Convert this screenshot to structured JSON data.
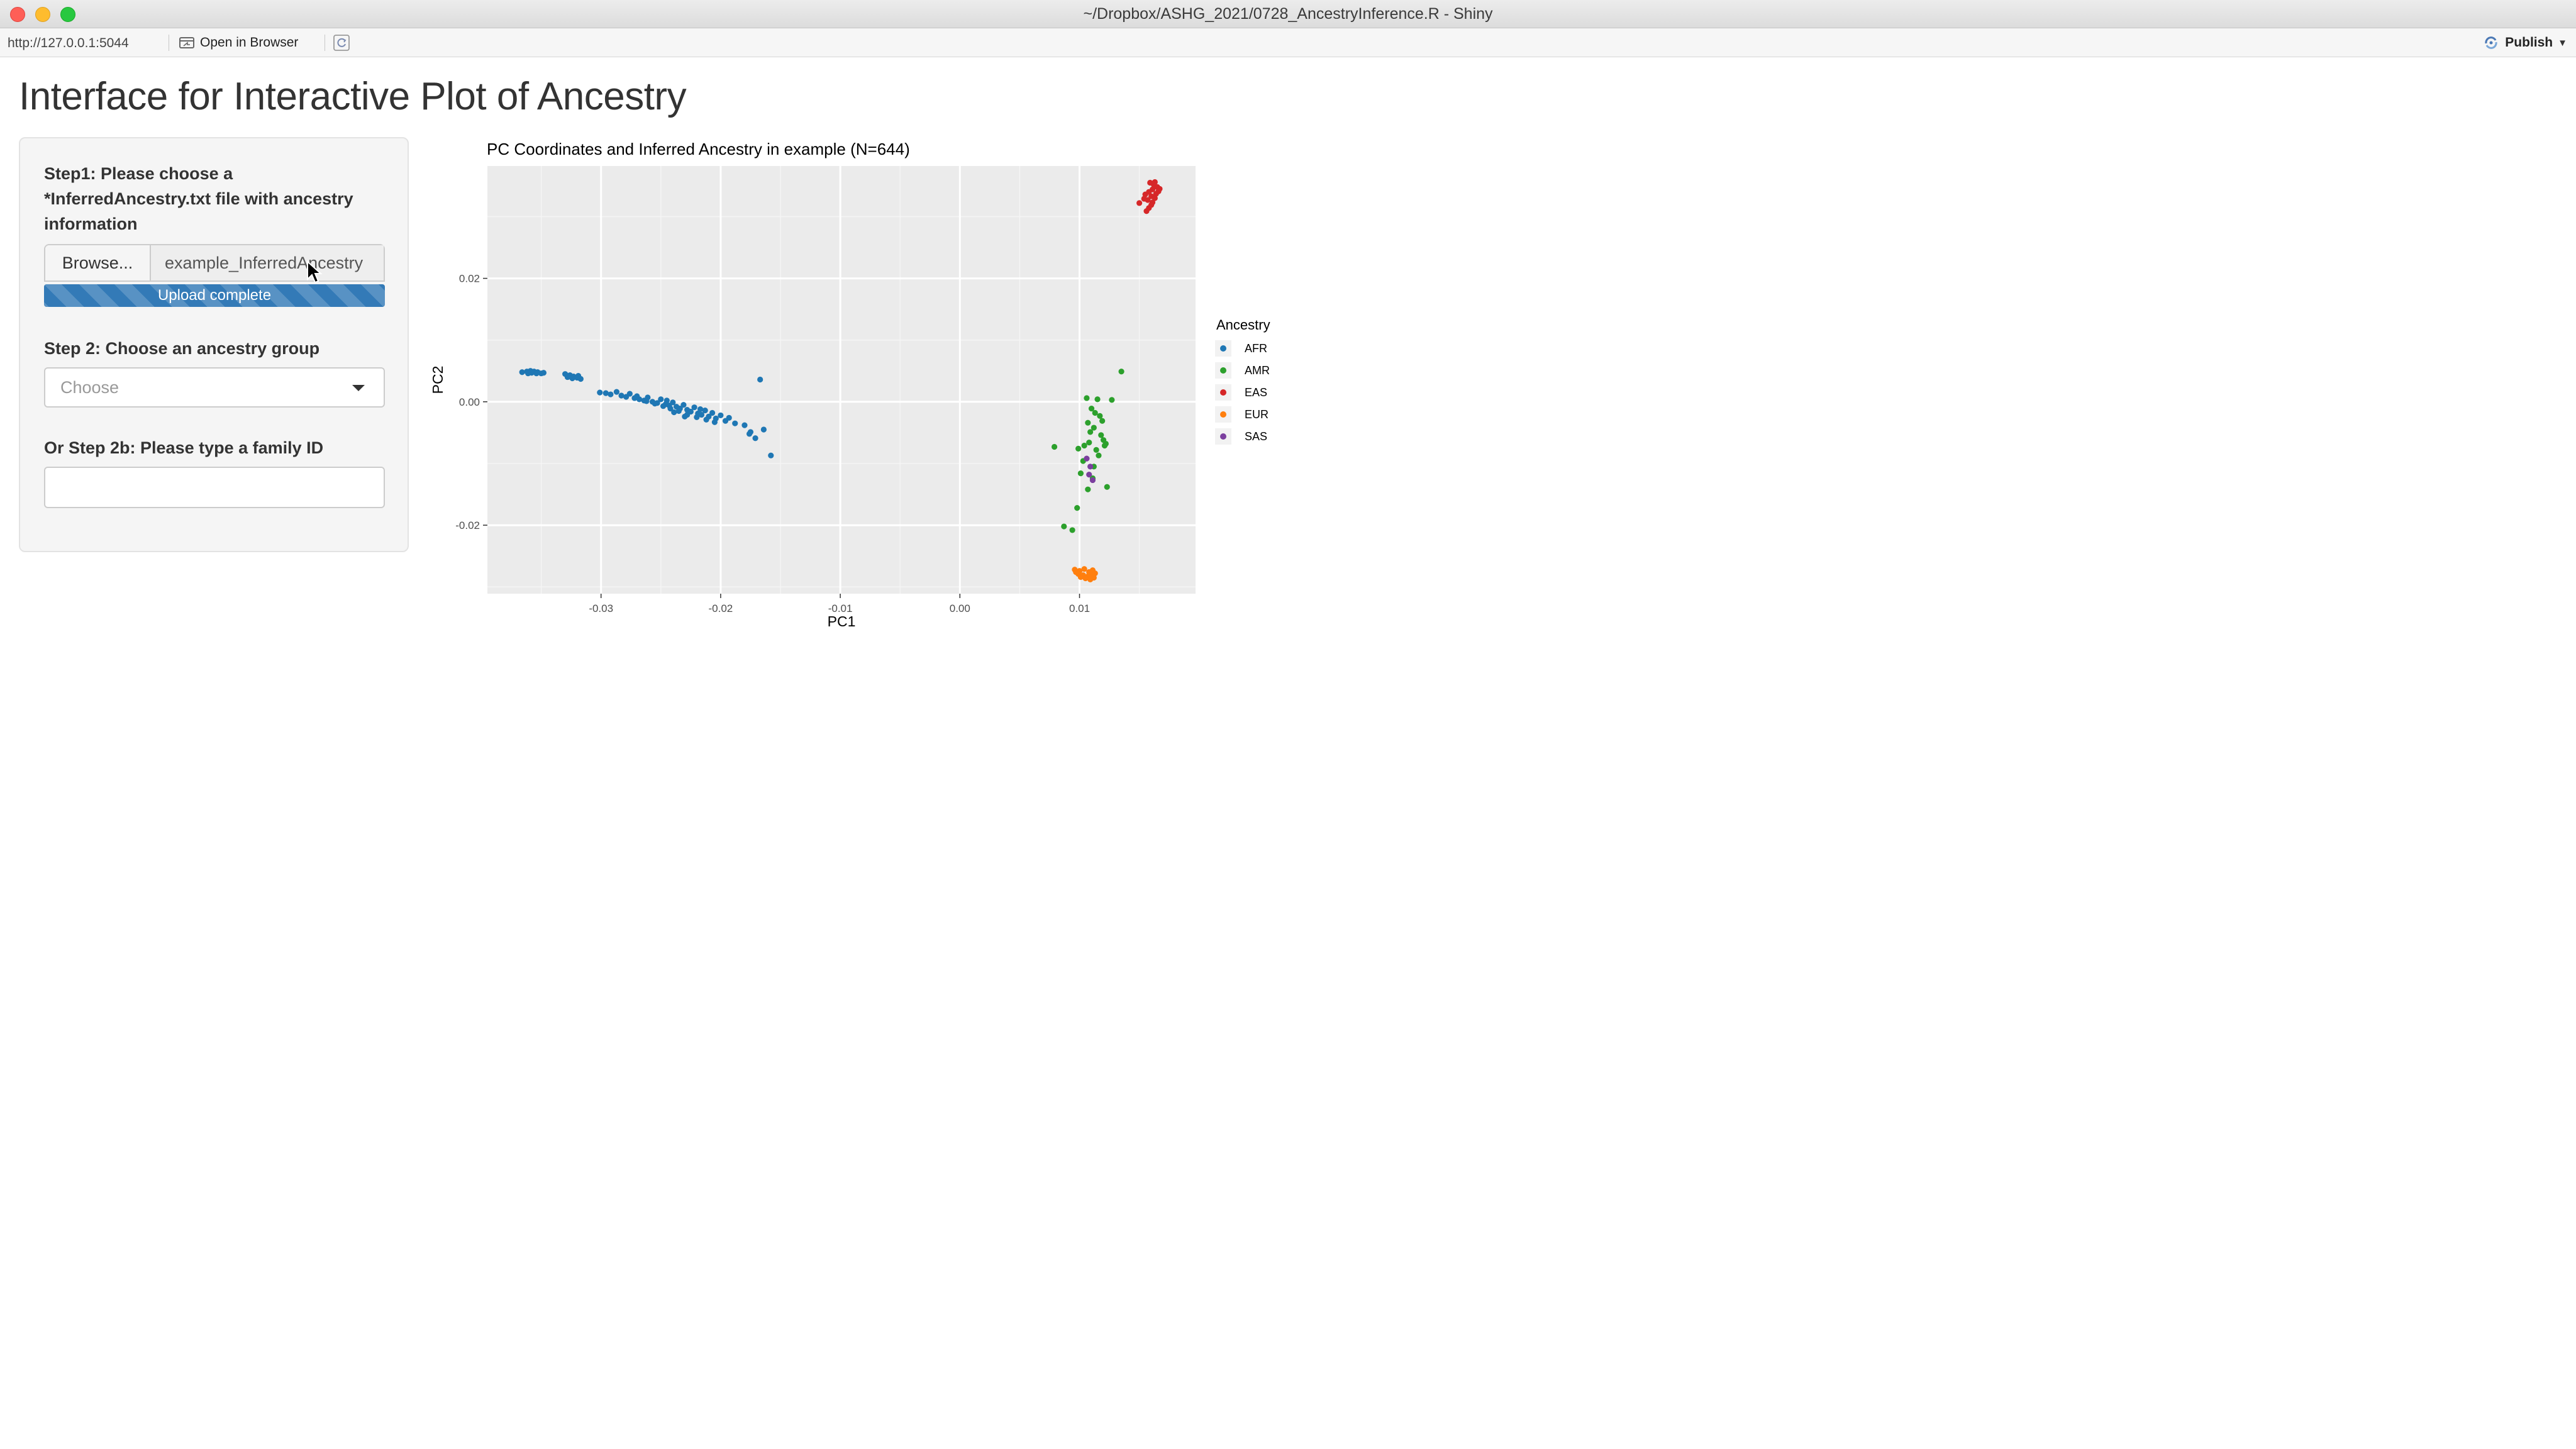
{
  "window": {
    "title": "~/Dropbox/ASHG_2021/0728_AncestryInference.R - Shiny"
  },
  "toolbar": {
    "url": "http://127.0.0.1:5044",
    "open_in_browser": "Open in Browser",
    "publish": "Publish"
  },
  "page": {
    "title": "Interface for Interactive Plot of Ancestry"
  },
  "sidebar": {
    "step1_label": "Step1: Please choose a *InferredAncestry.txt file with ancestry information",
    "browse_label": "Browse...",
    "file_name": "example_InferredAncestry",
    "upload_status": "Upload complete",
    "upload_progress": 1.0,
    "step2_label": "Step 2: Choose an ancestry group",
    "ancestry_select_placeholder": "Choose",
    "step2b_label": "Or Step 2b: Please type a family ID",
    "family_id_value": ""
  },
  "chart_data": {
    "type": "scatter",
    "title": "PC Coordinates and Inferred Ancestry in example (N=644)",
    "xlabel": "PC1",
    "ylabel": "PC2",
    "xlim": [
      -0.0395,
      0.0197
    ],
    "ylim": [
      -0.0311,
      0.0382
    ],
    "x_ticks": [
      -0.03,
      -0.02,
      -0.01,
      0.0,
      0.01
    ],
    "x_tick_labels": [
      "-0.03",
      "-0.02",
      "-0.01",
      "0.00",
      "0.01"
    ],
    "y_ticks": [
      0.02,
      0.0,
      -0.02
    ],
    "y_tick_labels": [
      "0.02",
      "0.00",
      "-0.02"
    ],
    "grid": true,
    "legend": {
      "title": "Ancestry",
      "placement": "right"
    },
    "series": [
      {
        "name": "AFR",
        "color": "#1f77b4",
        "points": [
          [
            -0.0366,
            0.0048
          ],
          [
            -0.0362,
            0.0049
          ],
          [
            -0.0359,
            0.005
          ],
          [
            -0.0356,
            0.0049
          ],
          [
            -0.0353,
            0.0048
          ],
          [
            -0.035,
            0.0046
          ],
          [
            -0.0358,
            0.0047
          ],
          [
            -0.0354,
            0.0046
          ],
          [
            -0.0361,
            0.0046
          ],
          [
            -0.0348,
            0.0047
          ],
          [
            -0.033,
            0.0045
          ],
          [
            -0.0326,
            0.0043
          ],
          [
            -0.0323,
            0.0041
          ],
          [
            -0.032,
            0.0039
          ],
          [
            -0.0317,
            0.0037
          ],
          [
            -0.0324,
            0.0038
          ],
          [
            -0.0319,
            0.0042
          ],
          [
            -0.0328,
            0.004
          ],
          [
            -0.0301,
            0.0015
          ],
          [
            -0.0296,
            0.0014
          ],
          [
            -0.0292,
            0.0012
          ],
          [
            -0.0287,
            0.0016
          ],
          [
            -0.0283,
            0.001
          ],
          [
            -0.0279,
            0.0008
          ],
          [
            -0.0276,
            0.0013
          ],
          [
            -0.0272,
            0.0006
          ],
          [
            -0.0268,
            0.0004
          ],
          [
            -0.0264,
            0.0002
          ],
          [
            -0.0261,
            0.0007
          ],
          [
            -0.0257,
            0.0
          ],
          [
            -0.0253,
            -0.0002
          ],
          [
            -0.025,
            0.0004
          ],
          [
            -0.0246,
            -0.0004
          ],
          [
            -0.0243,
            -0.0006
          ],
          [
            -0.024,
            -0.0001
          ],
          [
            -0.0237,
            -0.0008
          ],
          [
            -0.0234,
            -0.0011
          ],
          [
            -0.0231,
            -0.0005
          ],
          [
            -0.0228,
            -0.0013
          ],
          [
            -0.0225,
            -0.0016
          ],
          [
            -0.0222,
            -0.0009
          ],
          [
            -0.0219,
            -0.0019
          ],
          [
            -0.0216,
            -0.0021
          ],
          [
            -0.0213,
            -0.0014
          ],
          [
            -0.021,
            -0.0024
          ],
          [
            -0.0207,
            -0.0018
          ],
          [
            -0.0204,
            -0.0027
          ],
          [
            -0.02,
            -0.0022
          ],
          [
            -0.0196,
            -0.0031
          ],
          [
            -0.0193,
            -0.0026
          ],
          [
            -0.0235,
            -0.0015
          ],
          [
            -0.0228,
            -0.0021
          ],
          [
            -0.022,
            -0.0025
          ],
          [
            -0.0248,
            -0.0007
          ],
          [
            -0.0255,
            -0.0003
          ],
          [
            -0.0239,
            -0.0017
          ],
          [
            -0.0212,
            -0.0029
          ],
          [
            -0.0205,
            -0.0033
          ],
          [
            -0.0188,
            -0.0035
          ],
          [
            -0.018,
            -0.0038
          ],
          [
            -0.0176,
            -0.0052
          ],
          [
            -0.0171,
            -0.0059
          ],
          [
            -0.0167,
            0.0036
          ],
          [
            -0.0175,
            -0.0049
          ],
          [
            -0.0164,
            -0.0045
          ],
          [
            -0.0158,
            -0.0087
          ],
          [
            -0.0262,
            0.0001
          ],
          [
            -0.027,
            0.0009
          ],
          [
            -0.0245,
            0.0002
          ],
          [
            -0.0217,
            -0.0012
          ],
          [
            -0.023,
            -0.0024
          ],
          [
            -0.0242,
            -0.0011
          ]
        ]
      },
      {
        "name": "AMR",
        "color": "#2ca02c",
        "points": [
          [
            0.0135,
            0.0049
          ],
          [
            0.0106,
            0.0006
          ],
          [
            0.0115,
            0.0004
          ],
          [
            0.0127,
            0.0003
          ],
          [
            0.011,
            -0.0011
          ],
          [
            0.0113,
            -0.0018
          ],
          [
            0.0117,
            -0.0023
          ],
          [
            0.0107,
            -0.0034
          ],
          [
            0.0112,
            -0.0042
          ],
          [
            0.0118,
            -0.0054
          ],
          [
            0.012,
            -0.0062
          ],
          [
            0.0108,
            -0.0066
          ],
          [
            0.0104,
            -0.0071
          ],
          [
            0.0114,
            -0.0078
          ],
          [
            0.0122,
            -0.0068
          ],
          [
            0.0079,
            -0.0073
          ],
          [
            0.0099,
            -0.0076
          ],
          [
            0.0116,
            -0.0087
          ],
          [
            0.0103,
            -0.0096
          ],
          [
            0.0112,
            -0.0105
          ],
          [
            0.0101,
            -0.0116
          ],
          [
            0.0111,
            -0.0124
          ],
          [
            0.0123,
            -0.0138
          ],
          [
            0.0107,
            -0.0142
          ],
          [
            0.0098,
            -0.0172
          ],
          [
            0.0087,
            -0.0202
          ],
          [
            0.0094,
            -0.0208
          ],
          [
            0.0109,
            -0.0049
          ],
          [
            0.0119,
            -0.0031
          ],
          [
            0.0121,
            -0.0071
          ]
        ]
      },
      {
        "name": "EAS",
        "color": "#d62728",
        "points": [
          [
            0.0159,
            0.0355
          ],
          [
            0.0162,
            0.0352
          ],
          [
            0.0165,
            0.0348
          ],
          [
            0.0161,
            0.0344
          ],
          [
            0.0158,
            0.034
          ],
          [
            0.0164,
            0.0337
          ],
          [
            0.016,
            0.0333
          ],
          [
            0.0163,
            0.033
          ],
          [
            0.0157,
            0.0327
          ],
          [
            0.0161,
            0.0323
          ],
          [
            0.0166,
            0.0341
          ],
          [
            0.0155,
            0.0336
          ],
          [
            0.016,
            0.0319
          ],
          [
            0.0158,
            0.0314
          ],
          [
            0.0156,
            0.0309
          ],
          [
            0.015,
            0.0322
          ],
          [
            0.0163,
            0.0356
          ],
          [
            0.0167,
            0.0345
          ],
          [
            0.0154,
            0.0329
          ]
        ]
      },
      {
        "name": "EUR",
        "color": "#ff7f0e",
        "points": [
          [
            0.0096,
            -0.0272
          ],
          [
            0.01,
            -0.0274
          ],
          [
            0.0104,
            -0.0271
          ],
          [
            0.0108,
            -0.0276
          ],
          [
            0.0111,
            -0.0273
          ],
          [
            0.0099,
            -0.0279
          ],
          [
            0.0103,
            -0.0281
          ],
          [
            0.0107,
            -0.0283
          ],
          [
            0.011,
            -0.028
          ],
          [
            0.0105,
            -0.0286
          ],
          [
            0.0109,
            -0.0288
          ],
          [
            0.0101,
            -0.0284
          ],
          [
            0.0113,
            -0.0278
          ],
          [
            0.0097,
            -0.0276
          ],
          [
            0.0112,
            -0.0285
          ]
        ]
      },
      {
        "name": "SAS",
        "color": "#7b3f9e",
        "points": [
          [
            0.0109,
            -0.0105
          ],
          [
            0.0111,
            -0.0127
          ],
          [
            0.0106,
            -0.0092
          ],
          [
            0.0108,
            -0.0118
          ]
        ]
      }
    ]
  }
}
